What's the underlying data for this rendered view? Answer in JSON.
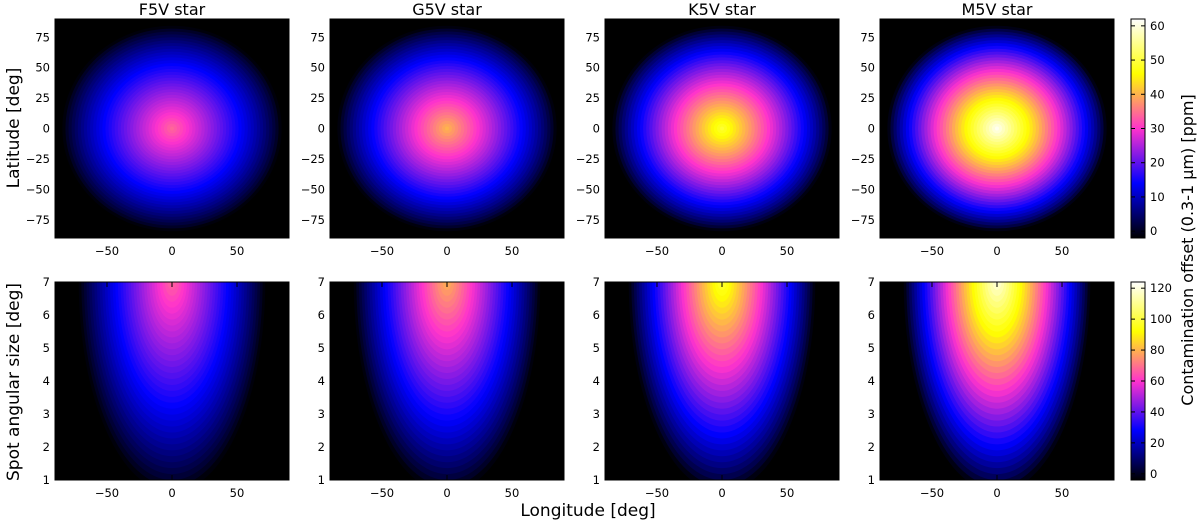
{
  "figure": {
    "xlabel": "Longitude [deg]",
    "row_ylabels": [
      "Latitude [deg]",
      "Spot angular size [deg]"
    ],
    "colorbar_label": "Contamination offset (0.3-1 μm) [ppm]",
    "colormap": [
      "#000000",
      "#0000ff",
      "#ff33cc",
      "#ffff00",
      "#ffffff"
    ]
  },
  "chart_data": [
    {
      "type": "heatmap",
      "title": "F5V star",
      "row": 0,
      "col": 0,
      "xlim": [
        -90,
        90
      ],
      "ylim": [
        -90,
        90
      ],
      "xticks": [
        -50,
        0,
        50
      ],
      "yticks": [
        -75,
        -50,
        -25,
        0,
        25,
        50,
        75
      ],
      "peak_value": 34,
      "clim": [
        -2,
        62
      ],
      "xlabel": "",
      "ylabel": "Latitude [deg]"
    },
    {
      "type": "heatmap",
      "title": "G5V star",
      "row": 0,
      "col": 1,
      "xlim": [
        -90,
        90
      ],
      "ylim": [
        -90,
        90
      ],
      "xticks": [
        -50,
        0,
        50
      ],
      "yticks": [
        -75,
        -50,
        -25,
        0,
        25,
        50,
        75
      ],
      "peak_value": 40,
      "clim": [
        -2,
        62
      ],
      "xlabel": "",
      "ylabel": ""
    },
    {
      "type": "heatmap",
      "title": "K5V star",
      "row": 0,
      "col": 2,
      "xlim": [
        -90,
        90
      ],
      "ylim": [
        -90,
        90
      ],
      "xticks": [
        -50,
        0,
        50
      ],
      "yticks": [
        -75,
        -50,
        -25,
        0,
        25,
        50,
        75
      ],
      "peak_value": 49,
      "clim": [
        -2,
        62
      ],
      "xlabel": "",
      "ylabel": ""
    },
    {
      "type": "heatmap",
      "title": "M5V star",
      "row": 0,
      "col": 3,
      "xlim": [
        -90,
        90
      ],
      "ylim": [
        -90,
        90
      ],
      "xticks": [
        -50,
        0,
        50
      ],
      "yticks": [
        -75,
        -50,
        -25,
        0,
        25,
        50,
        75
      ],
      "peak_value": 61,
      "clim": [
        -2,
        62
      ],
      "xlabel": "",
      "ylabel": "",
      "colorbar": {
        "ticks": [
          0,
          10,
          20,
          30,
          40,
          50,
          60
        ],
        "range": [
          -2,
          62
        ]
      }
    },
    {
      "type": "heatmap",
      "title": "",
      "row": 1,
      "col": 0,
      "xlim": [
        -90,
        90
      ],
      "ylim": [
        1,
        7
      ],
      "xticks": [
        -50,
        0,
        50
      ],
      "yticks": [
        1,
        2,
        3,
        4,
        5,
        6,
        7
      ],
      "peak_value": 68,
      "clim": [
        -4,
        124
      ],
      "xlabel": "",
      "ylabel": "Spot angular size [deg]"
    },
    {
      "type": "heatmap",
      "title": "",
      "row": 1,
      "col": 1,
      "xlim": [
        -90,
        90
      ],
      "ylim": [
        1,
        7
      ],
      "xticks": [
        -50,
        0,
        50
      ],
      "yticks": [
        1,
        2,
        3,
        4,
        5,
        6,
        7
      ],
      "peak_value": 80,
      "clim": [
        -4,
        124
      ],
      "xlabel": "Longitude [deg]",
      "ylabel": ""
    },
    {
      "type": "heatmap",
      "title": "",
      "row": 1,
      "col": 2,
      "xlim": [
        -90,
        90
      ],
      "ylim": [
        1,
        7
      ],
      "xticks": [
        -50,
        0,
        50
      ],
      "yticks": [
        1,
        2,
        3,
        4,
        5,
        6,
        7
      ],
      "peak_value": 99,
      "clim": [
        -4,
        124
      ],
      "xlabel": "",
      "ylabel": ""
    },
    {
      "type": "heatmap",
      "title": "",
      "row": 1,
      "col": 3,
      "xlim": [
        -90,
        90
      ],
      "ylim": [
        1,
        7
      ],
      "xticks": [
        -50,
        0,
        50
      ],
      "yticks": [
        1,
        2,
        3,
        4,
        5,
        6,
        7
      ],
      "peak_value": 120,
      "clim": [
        -4,
        124
      ],
      "xlabel": "",
      "ylabel": "",
      "colorbar": {
        "ticks": [
          0,
          20,
          40,
          60,
          80,
          100,
          120
        ],
        "range": [
          -4,
          124
        ]
      }
    }
  ]
}
